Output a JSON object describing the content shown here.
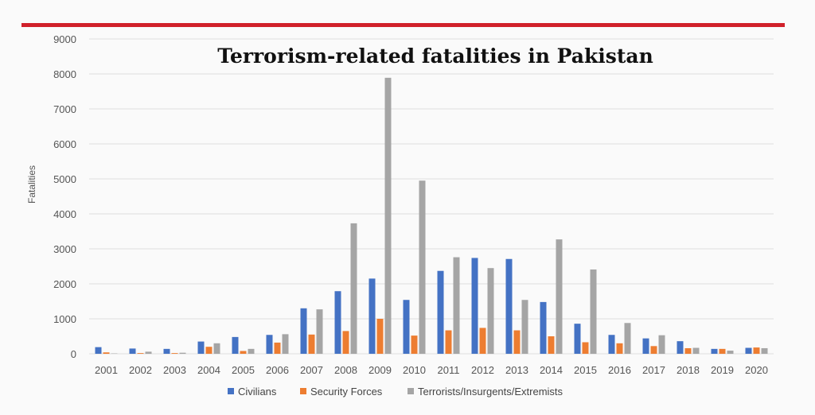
{
  "colors": {
    "top_rule": "#d0202a",
    "gridline": "#dddddd",
    "civilians": "#4472c4",
    "security_forces": "#ed7d31",
    "terrorists": "#a5a5a5"
  },
  "chart_data": {
    "type": "bar",
    "title": "Terrorism-related fatalities in Pakistan",
    "xlabel": "",
    "ylabel": "Fatalities",
    "ylim": [
      0,
      9000
    ],
    "yticks": [
      0,
      1000,
      2000,
      3000,
      4000,
      5000,
      6000,
      7000,
      8000,
      9000
    ],
    "grid": true,
    "legend_position": "bottom",
    "categories": [
      "2001",
      "2002",
      "2003",
      "2004",
      "2005",
      "2006",
      "2007",
      "2008",
      "2009",
      "2010",
      "2011",
      "2012",
      "2013",
      "2014",
      "2015",
      "2016",
      "2017",
      "2018",
      "2019",
      "2020"
    ],
    "series": [
      {
        "name": "Civilians",
        "color_key": "civilians",
        "values": [
          190,
          150,
          140,
          350,
          480,
          540,
          1300,
          1790,
          2150,
          1540,
          2370,
          2740,
          2710,
          1480,
          860,
          540,
          440,
          360,
          140,
          170
        ]
      },
      {
        "name": "Security Forces",
        "color_key": "security_forces",
        "values": [
          40,
          20,
          20,
          200,
          80,
          320,
          550,
          650,
          1000,
          520,
          670,
          740,
          670,
          500,
          330,
          300,
          220,
          160,
          140,
          180
        ]
      },
      {
        "name": "Terrorists/Insurgents/Extremists",
        "color_key": "terrorists",
        "values": [
          10,
          60,
          30,
          300,
          140,
          560,
          1270,
          3730,
          7890,
          4950,
          2760,
          2450,
          1540,
          3270,
          2410,
          880,
          530,
          170,
          90,
          160
        ]
      }
    ]
  }
}
